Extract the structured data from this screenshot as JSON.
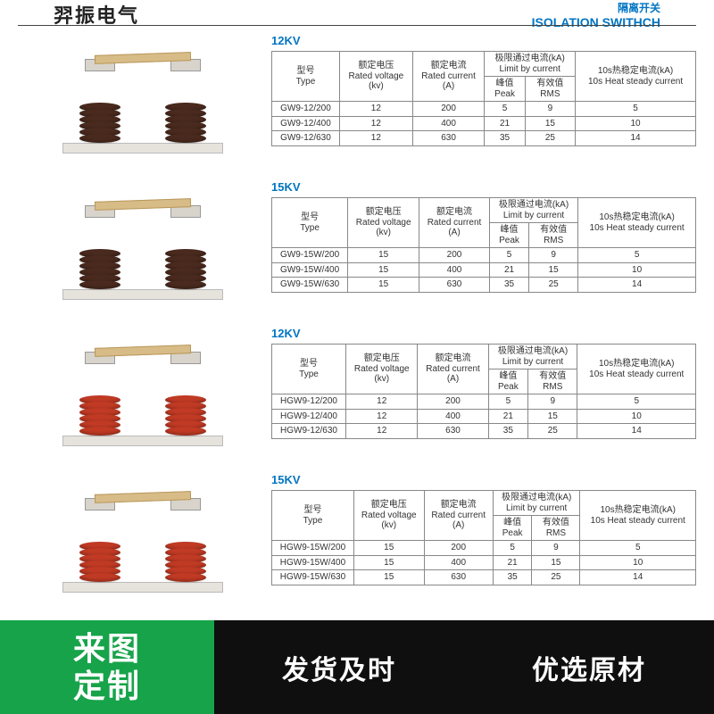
{
  "header": {
    "brand": "羿振电气",
    "title_cn": "隔离开关",
    "title_en": "ISOLATION SWITHCH"
  },
  "columns": {
    "type_cn": "型号",
    "type_en": "Type",
    "voltage_cn": "额定电压",
    "voltage_en": "Rated voltage",
    "voltage_unit": "(kv)",
    "current_cn": "额定电流",
    "current_en": "Rated current",
    "current_unit": "(A)",
    "limit_cn": "极限通过电流(kA)",
    "limit_en": "Limit by current",
    "peak_cn": "峰值",
    "peak_en": "Peak",
    "rms_cn": "有效值",
    "rms_en": "RMS",
    "heat_cn": "10s热稳定电流(kA)",
    "heat_en": "10s Heat steady current"
  },
  "sections": [
    {
      "title": "12KV",
      "insulator_color": "brown",
      "rows": [
        {
          "type": "GW9-12/200",
          "voltage": "12",
          "current": "200",
          "peak": "5",
          "rms": "9",
          "heat": "5"
        },
        {
          "type": "GW9-12/400",
          "voltage": "12",
          "current": "400",
          "peak": "21",
          "rms": "15",
          "heat": "10"
        },
        {
          "type": "GW9-12/630",
          "voltage": "12",
          "current": "630",
          "peak": "35",
          "rms": "25",
          "heat": "14"
        }
      ]
    },
    {
      "title": "15KV",
      "insulator_color": "brown",
      "rows": [
        {
          "type": "GW9-15W/200",
          "voltage": "15",
          "current": "200",
          "peak": "5",
          "rms": "9",
          "heat": "5"
        },
        {
          "type": "GW9-15W/400",
          "voltage": "15",
          "current": "400",
          "peak": "21",
          "rms": "15",
          "heat": "10"
        },
        {
          "type": "GW9-15W/630",
          "voltage": "15",
          "current": "630",
          "peak": "35",
          "rms": "25",
          "heat": "14"
        }
      ]
    },
    {
      "title": "12KV",
      "insulator_color": "red",
      "rows": [
        {
          "type": "HGW9-12/200",
          "voltage": "12",
          "current": "200",
          "peak": "5",
          "rms": "9",
          "heat": "5"
        },
        {
          "type": "HGW9-12/400",
          "voltage": "12",
          "current": "400",
          "peak": "21",
          "rms": "15",
          "heat": "10"
        },
        {
          "type": "HGW9-12/630",
          "voltage": "12",
          "current": "630",
          "peak": "35",
          "rms": "25",
          "heat": "14"
        }
      ]
    },
    {
      "title": "15KV",
      "insulator_color": "red",
      "rows": [
        {
          "type": "HGW9-15W/200",
          "voltage": "15",
          "current": "200",
          "peak": "5",
          "rms": "9",
          "heat": "5"
        },
        {
          "type": "HGW9-15W/400",
          "voltage": "15",
          "current": "400",
          "peak": "21",
          "rms": "15",
          "heat": "10"
        },
        {
          "type": "HGW9-15W/630",
          "voltage": "15",
          "current": "630",
          "peak": "35",
          "rms": "25",
          "heat": "14"
        }
      ]
    }
  ],
  "banner": {
    "left_line1": "来图",
    "left_line2": "定制",
    "right1": "发货及时",
    "right2": "优选原材"
  },
  "style": {
    "accent": "#0075c2",
    "banner_green": "#17a34a",
    "banner_black": "#0f0f0f",
    "brown": "#4a2a1e",
    "red": "#c03a24"
  }
}
